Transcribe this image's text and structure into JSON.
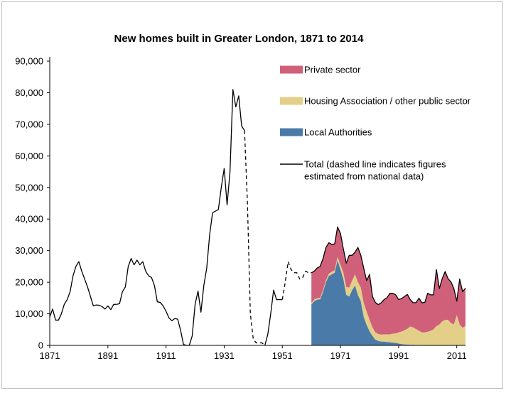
{
  "chart_data": {
    "type": "area",
    "title": "New homes built in Greater London, 1871 to 2014",
    "xlabel": "",
    "ylabel": "",
    "xlim": [
      1871,
      2014
    ],
    "ylim": [
      0,
      90000
    ],
    "yticks": [
      0,
      10000,
      20000,
      30000,
      40000,
      50000,
      60000,
      70000,
      80000,
      90000
    ],
    "ytick_labels": [
      "0",
      "10,000",
      "20,000",
      "30,000",
      "40,000",
      "50,000",
      "60,000",
      "70,000",
      "80,000",
      "90,000"
    ],
    "xticks": [
      1871,
      1891,
      1911,
      1931,
      1951,
      1971,
      1991,
      2011
    ],
    "xtick_labels": [
      "1871",
      "1891",
      "1911",
      "1931",
      "1951",
      "1971",
      "1991",
      "2011"
    ],
    "grid": false,
    "legend_position": "top-right",
    "colors": {
      "private": "#d0607a",
      "housing_association": "#e3cf88",
      "local_authorities": "#4a7ba8",
      "total": "#000000"
    },
    "stack_x": [
      1961,
      1962,
      1963,
      1964,
      1965,
      1966,
      1967,
      1968,
      1969,
      1970,
      1971,
      1972,
      1973,
      1974,
      1975,
      1976,
      1977,
      1978,
      1979,
      1980,
      1981,
      1982,
      1983,
      1984,
      1985,
      1986,
      1987,
      1988,
      1989,
      1990,
      1991,
      1992,
      1993,
      1994,
      1995,
      1996,
      1997,
      1998,
      1999,
      2000,
      2001,
      2002,
      2003,
      2004,
      2005,
      2006,
      2007,
      2008,
      2009,
      2010,
      2011,
      2012,
      2013,
      2014
    ],
    "series": [
      {
        "name": "Local Authorities",
        "key": "local_authorities",
        "values": [
          13000,
          14000,
          14500,
          14500,
          17000,
          20000,
          22000,
          22500,
          23000,
          27000,
          24000,
          21000,
          16000,
          15500,
          17500,
          19000,
          16000,
          14000,
          9000,
          6500,
          4500,
          3000,
          1800,
          1400,
          1200,
          1200,
          1100,
          1000,
          900,
          800,
          600,
          400,
          300,
          250,
          200,
          200,
          150,
          150,
          100,
          100,
          100,
          100,
          100,
          100,
          100,
          100,
          100,
          100,
          100,
          100,
          100,
          100,
          100,
          100
        ]
      },
      {
        "name": "Housing Association / other public sector",
        "key": "housing_association",
        "values": [
          400,
          500,
          500,
          500,
          600,
          600,
          700,
          800,
          800,
          1000,
          1500,
          2000,
          2500,
          2800,
          3000,
          3500,
          4000,
          4300,
          4400,
          4200,
          3600,
          2700,
          2300,
          2200,
          2200,
          2300,
          2400,
          2500,
          2800,
          3000,
          3500,
          4000,
          4500,
          5000,
          5800,
          5500,
          5000,
          4500,
          4000,
          4000,
          4200,
          4500,
          5000,
          6000,
          6500,
          7500,
          8000,
          8000,
          7000,
          6500,
          9500,
          6500,
          5500,
          6000
        ]
      },
      {
        "name": "Private sector",
        "key": "private",
        "values": [
          9600,
          9000,
          9500,
          10000,
          9900,
          10400,
          9800,
          8700,
          8300,
          9500,
          9900,
          7500,
          7500,
          10200,
          8000,
          7000,
          11000,
          10200,
          11000,
          9800,
          14400,
          9800,
          9500,
          9300,
          10100,
          11000,
          11600,
          13000,
          12800,
          12200,
          10400,
          10400,
          10700,
          10900,
          8500,
          7800,
          8400,
          10300,
          9400,
          9500,
          12200,
          11400,
          10900,
          17900,
          11400,
          13500,
          15300,
          13000,
          13000,
          11400,
          4400,
          14400,
          11400,
          12000
        ]
      }
    ],
    "total": {
      "name": "Total (dashed line indicates figures estimated from national data)",
      "solid_segments": [
        {
          "x": [
            1871,
            1872,
            1873,
            1874,
            1875,
            1876,
            1877,
            1878,
            1879,
            1880,
            1881,
            1882,
            1883,
            1884,
            1885,
            1886,
            1887,
            1888,
            1889,
            1890,
            1891,
            1892,
            1893,
            1894,
            1895,
            1896,
            1897,
            1898,
            1899,
            1900,
            1901,
            1902,
            1903,
            1904,
            1905,
            1906,
            1907,
            1908,
            1909,
            1910,
            1911,
            1912,
            1913,
            1914,
            1915,
            1916,
            1917,
            1918,
            1919,
            1920,
            1921,
            1922,
            1923,
            1924,
            1925,
            1926,
            1927,
            1928,
            1929,
            1930,
            1931,
            1932,
            1933,
            1934,
            1935,
            1936,
            1937,
            1938
          ],
          "y": [
            9000,
            11500,
            8000,
            8000,
            10000,
            13000,
            14500,
            17000,
            22000,
            25000,
            26500,
            23500,
            21000,
            18500,
            15500,
            12500,
            12800,
            12700,
            12300,
            11500,
            12500,
            11300,
            13000,
            13000,
            13200,
            17000,
            18500,
            25000,
            27500,
            25500,
            27000,
            25500,
            26500,
            23500,
            22000,
            21500,
            19000,
            13800,
            13600,
            12500,
            10800,
            8700,
            7800,
            8500,
            8300,
            4800,
            300,
            0,
            0,
            3000,
            13000,
            17200,
            10500,
            19000,
            24500,
            35000,
            42000,
            42500,
            43000,
            50000,
            56000,
            44500,
            55000,
            81000,
            75500,
            79000,
            69500,
            68000
          ]
        },
        {
          "x": [
            1945,
            1946,
            1947,
            1948,
            1949,
            1950,
            1951
          ],
          "y": [
            0,
            3500,
            10000,
            17500,
            14500,
            14500,
            14500
          ]
        }
      ],
      "dashed_segments": [
        {
          "x": [
            1938,
            1939,
            1940,
            1941,
            1942,
            1943,
            1944,
            1945
          ],
          "y": [
            68000,
            45000,
            10000,
            2000,
            800,
            800,
            800,
            0
          ]
        },
        {
          "x": [
            1951,
            1952,
            1953,
            1954,
            1955,
            1956,
            1957,
            1958,
            1959,
            1960,
            1961
          ],
          "y": [
            14500,
            20000,
            26500,
            24000,
            23000,
            23000,
            21000,
            21500,
            23500,
            23000,
            23000
          ]
        }
      ]
    },
    "legend": [
      {
        "key": "private",
        "label": "Private sector"
      },
      {
        "key": "housing_association",
        "label": "Housing Association / other public sector"
      },
      {
        "key": "local_authorities",
        "label": "Local Authorities"
      },
      {
        "key": "total",
        "label_lines": [
          "Total (dashed line indicates figures",
          "estimated from national data)"
        ]
      }
    ]
  }
}
